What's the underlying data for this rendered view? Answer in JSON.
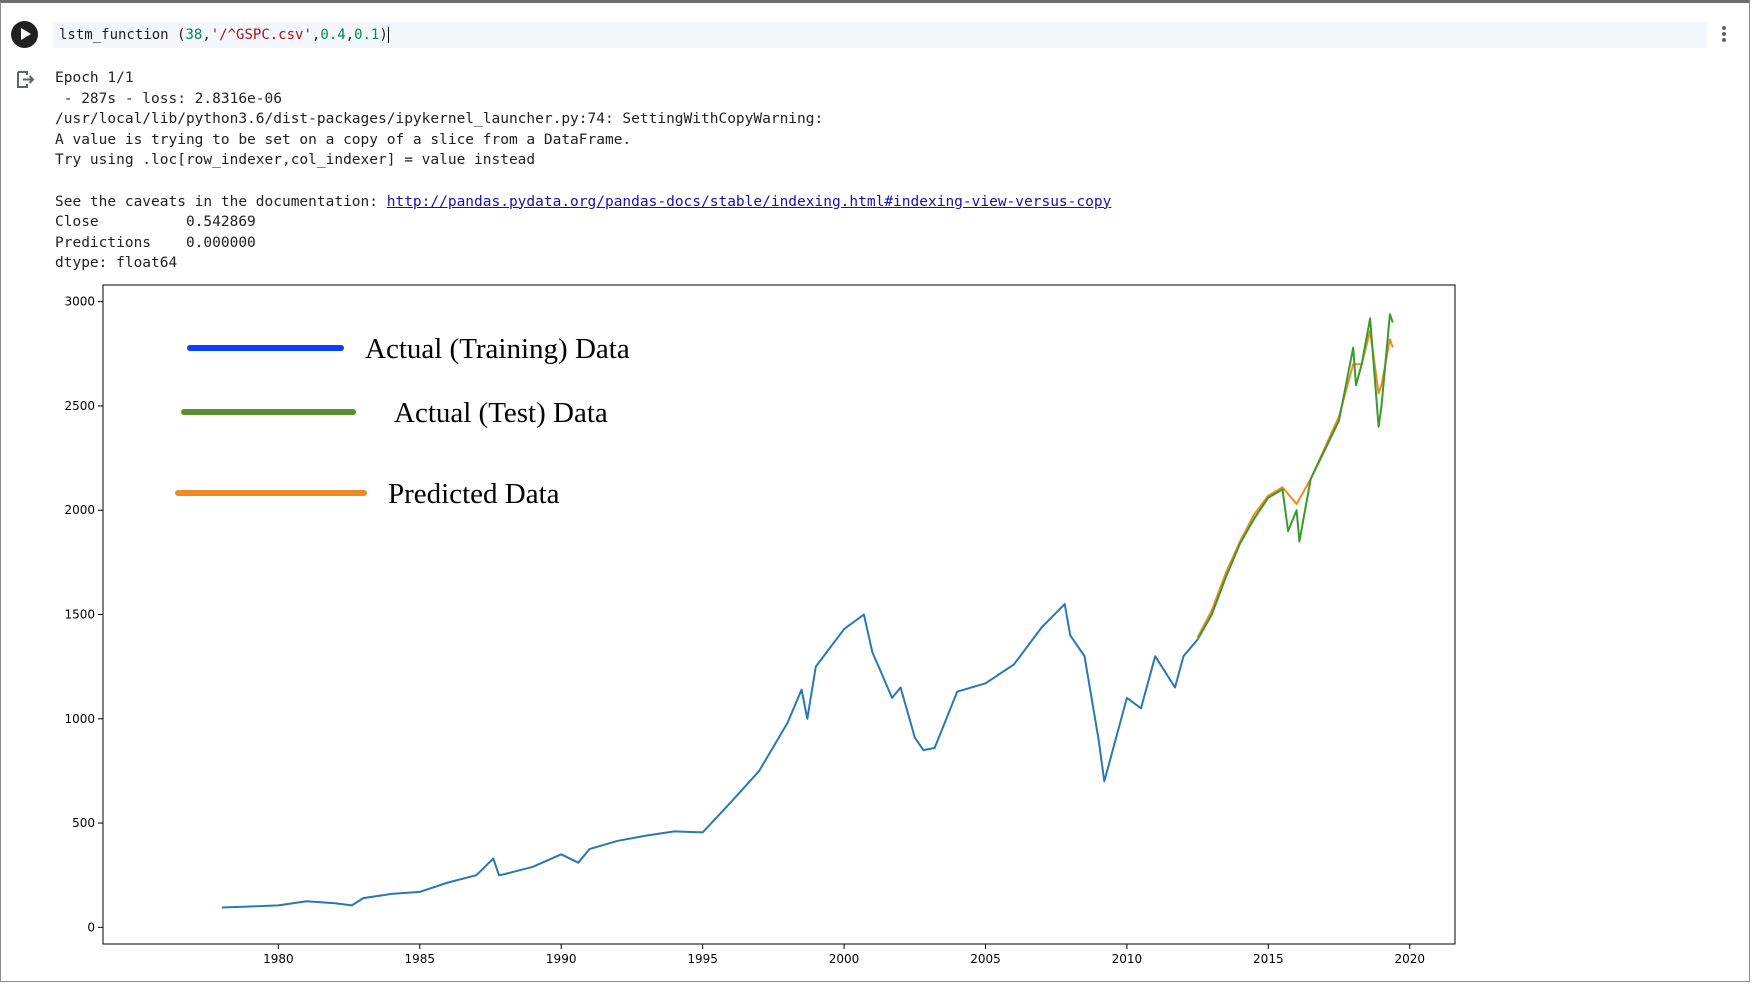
{
  "cell": {
    "code_fn": "lstm_function ",
    "code_open": "(",
    "code_arg1": "38",
    "code_comma1": ",",
    "code_arg2": "'/^GSPC.csv'",
    "code_comma2": ",",
    "code_arg3": "0.4",
    "code_comma3": ",",
    "code_arg4": "0.1",
    "code_close": ")"
  },
  "output": {
    "lines": [
      "Epoch 1/1",
      " - 287s - loss: 2.8316e-06",
      "/usr/local/lib/python3.6/dist-packages/ipykernel_launcher.py:74: SettingWithCopyWarning:",
      "A value is trying to be set on a copy of a slice from a DataFrame.",
      "Try using .loc[row_indexer,col_indexer] = value instead",
      ""
    ],
    "caveat_prefix": "See the caveats in the documentation: ",
    "caveat_link": "http://pandas.pydata.org/pandas-docs/stable/indexing.html#indexing-view-versus-copy",
    "result_lines": [
      "Close          0.542869",
      "Predictions    0.000000",
      "dtype: float64"
    ]
  },
  "icons": {
    "run": "play-circle-icon",
    "more": "vertical-dots-icon",
    "output": "output-arrow-icon"
  },
  "chart_data": {
    "type": "line",
    "title": "",
    "xlabel": "",
    "ylabel": "",
    "xlim": [
      1973.8,
      2021.6
    ],
    "ylim": [
      -80,
      3080
    ],
    "x_ticks": [
      1980,
      1985,
      1990,
      1995,
      2000,
      2005,
      2010,
      2015,
      2020
    ],
    "y_ticks": [
      0,
      500,
      1000,
      1500,
      2000,
      2500,
      3000
    ],
    "grid": false,
    "legend": {
      "placement": "upper-left",
      "entries": [
        {
          "label": "Actual (Training) Data",
          "color": "#0a3fff"
        },
        {
          "label": "Actual (Test) Data",
          "color": "#5a8f2e"
        },
        {
          "label": "Predicted Data",
          "color": "#f08a24"
        }
      ]
    },
    "series": [
      {
        "color": "#2a77b4",
        "x": [
          1978.0,
          1979.0,
          1980.0,
          1981.0,
          1982.0,
          1982.6,
          1983.0,
          1984.0,
          1985.0,
          1986.0,
          1987.0,
          1987.6,
          1987.8,
          1988.0,
          1989.0,
          1990.0,
          1990.6,
          1991.0,
          1992.0,
          1993.0,
          1994.0,
          1995.0,
          1996.0,
          1997.0,
          1998.0,
          1998.5,
          1998.7,
          1999.0,
          2000.0,
          2000.7,
          2001.0,
          2001.7,
          2002.0,
          2002.5,
          2002.8,
          2003.2,
          2004.0,
          2005.0,
          2006.0,
          2007.0,
          2007.8,
          2008.0,
          2008.5,
          2009.0,
          2009.2,
          2010.0,
          2010.5,
          2011.0,
          2011.7,
          2012.0,
          2012.5
        ],
        "y": [
          95,
          100,
          105,
          125,
          115,
          105,
          140,
          160,
          170,
          215,
          250,
          330,
          250,
          255,
          290,
          350,
          310,
          375,
          415,
          440,
          460,
          455,
          600,
          750,
          980,
          1140,
          1000,
          1250,
          1430,
          1500,
          1320,
          1100,
          1150,
          910,
          850,
          860,
          1130,
          1170,
          1260,
          1440,
          1550,
          1400,
          1300,
          900,
          700,
          1100,
          1050,
          1300,
          1150,
          1300,
          1380
        ]
      },
      {
        "color": "#f08a24",
        "x": [
          2012.5,
          2013.0,
          2013.5,
          2014.0,
          2014.5,
          2015.0,
          2015.5,
          2016.0,
          2016.5,
          2017.0,
          2017.5,
          2018.0,
          2018.3,
          2018.6,
          2018.9,
          2019.0,
          2019.3,
          2019.4
        ],
        "y": [
          1390,
          1520,
          1700,
          1850,
          1980,
          2070,
          2110,
          2030,
          2150,
          2300,
          2450,
          2700,
          2700,
          2860,
          2560,
          2600,
          2820,
          2780
        ]
      },
      {
        "color": "#3a9a2b",
        "x": [
          2012.5,
          2013.0,
          2013.5,
          2014.0,
          2014.5,
          2015.0,
          2015.5,
          2015.7,
          2016.0,
          2016.1,
          2016.5,
          2017.0,
          2017.5,
          2018.0,
          2018.1,
          2018.3,
          2018.6,
          2018.9,
          2019.0,
          2019.3,
          2019.4
        ],
        "y": [
          1380,
          1500,
          1680,
          1840,
          1960,
          2060,
          2100,
          1900,
          2000,
          1850,
          2150,
          2290,
          2430,
          2780,
          2600,
          2700,
          2920,
          2400,
          2500,
          2940,
          2900
        ]
      }
    ]
  }
}
